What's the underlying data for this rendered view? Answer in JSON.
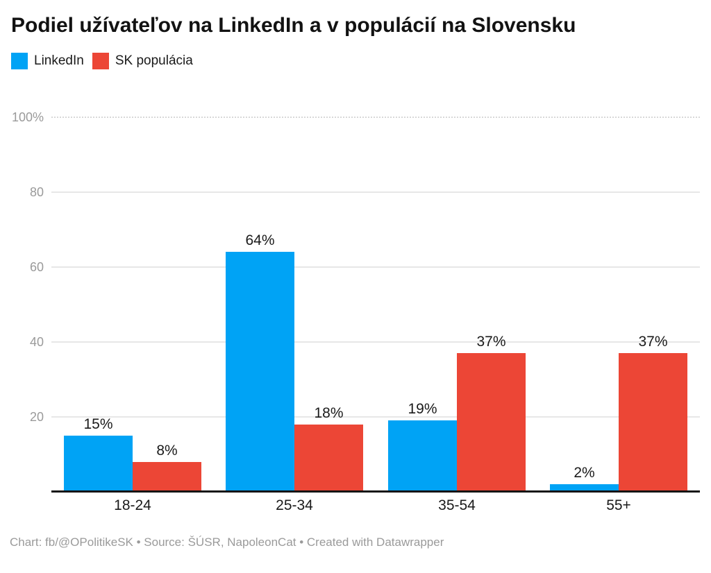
{
  "title": "Podiel užívateľov na LinkedIn a v populácií na Slovensku",
  "footer": "Chart: fb/@OPolitikeSK • Source: ŠÚSR, NapoleonCat • Created with Datawrapper",
  "colors": {
    "linkedin_blue": "#00a3f5",
    "population_red": "#ec4636",
    "gridline": "#e7e7e7",
    "axis_text": "#9a9a9a",
    "baseline": "#141414"
  },
  "chart_data": {
    "type": "bar",
    "title": "Podiel užívateľov na LinkedIn a v populácií na Slovensku",
    "categories": [
      "18-24",
      "25-34",
      "35-54",
      "55+"
    ],
    "series": [
      {
        "name": "LinkedIn",
        "color": "#00a3f5",
        "values": [
          15,
          64,
          19,
          2
        ]
      },
      {
        "name": "SK populácia",
        "color": "#ec4636",
        "values": [
          8,
          18,
          37,
          37
        ]
      }
    ],
    "value_suffix": "%",
    "xlabel": "",
    "ylabel": "",
    "ylim": [
      0,
      100
    ],
    "yticks": [
      {
        "value": 100,
        "label": "100%"
      },
      {
        "value": 80,
        "label": "80"
      },
      {
        "value": 60,
        "label": "60"
      },
      {
        "value": 40,
        "label": "40"
      },
      {
        "value": 20,
        "label": "20"
      }
    ],
    "grid": true,
    "legend_position": "top-left",
    "attribution": "Created with Datawrapper"
  }
}
